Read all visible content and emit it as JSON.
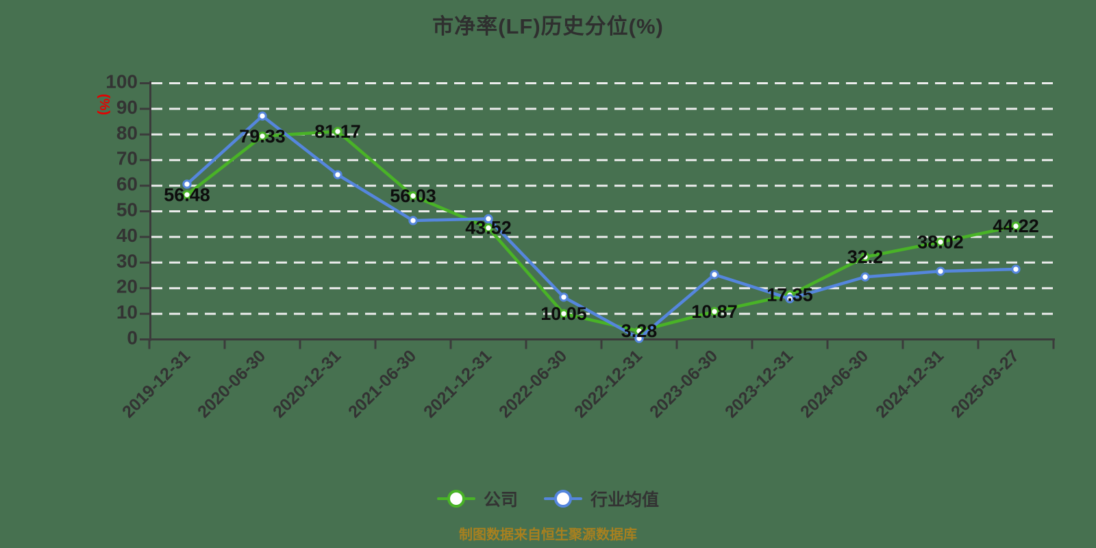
{
  "title": "市净率(LF)历史分位(%)",
  "y_axis_name": "(%)",
  "caption": "制图数据来自恒生聚源数据库",
  "legend": {
    "items": [
      {
        "label": "公司"
      },
      {
        "label": "行业均值"
      }
    ]
  },
  "colors": {
    "background": "#477150",
    "company": "#49b327",
    "industry": "#5586dd",
    "grid": "#ececec",
    "axis": "#3b3b3b",
    "tick_text": "#333333",
    "data_label": "#0d0d0d",
    "axis_name": "#e60000",
    "caption": "#a8801f"
  },
  "chart_data": {
    "type": "line",
    "title": "市净率(LF)历史分位(%)",
    "ylabel": "(%)",
    "ylim": [
      0,
      100
    ],
    "y_tick_step": 10,
    "y_ticks": [
      0,
      10,
      20,
      30,
      40,
      50,
      60,
      70,
      80,
      90,
      100
    ],
    "grid": "horizontal-dashed",
    "legend_position": "bottom",
    "categories": [
      "2019-12-31",
      "2020-06-30",
      "2020-12-31",
      "2021-06-30",
      "2021-12-31",
      "2022-06-30",
      "2022-12-31",
      "2023-06-30",
      "2023-12-31",
      "2024-06-30",
      "2024-12-31",
      "2025-03-27"
    ],
    "series": [
      {
        "name": "公司",
        "color": "#49b327",
        "values": [
          56.48,
          79.33,
          81.17,
          56.03,
          43.52,
          10.05,
          3.28,
          10.87,
          17.35,
          32.2,
          38.02,
          44.22
        ],
        "data_labels_shown": true
      },
      {
        "name": "行业均值",
        "color": "#5586dd",
        "values": [
          60.6,
          87.2,
          64.3,
          46.4,
          47.1,
          16.5,
          0.4,
          25.3,
          15.9,
          24.4,
          26.6,
          27.4
        ],
        "data_labels_shown": false
      }
    ]
  }
}
